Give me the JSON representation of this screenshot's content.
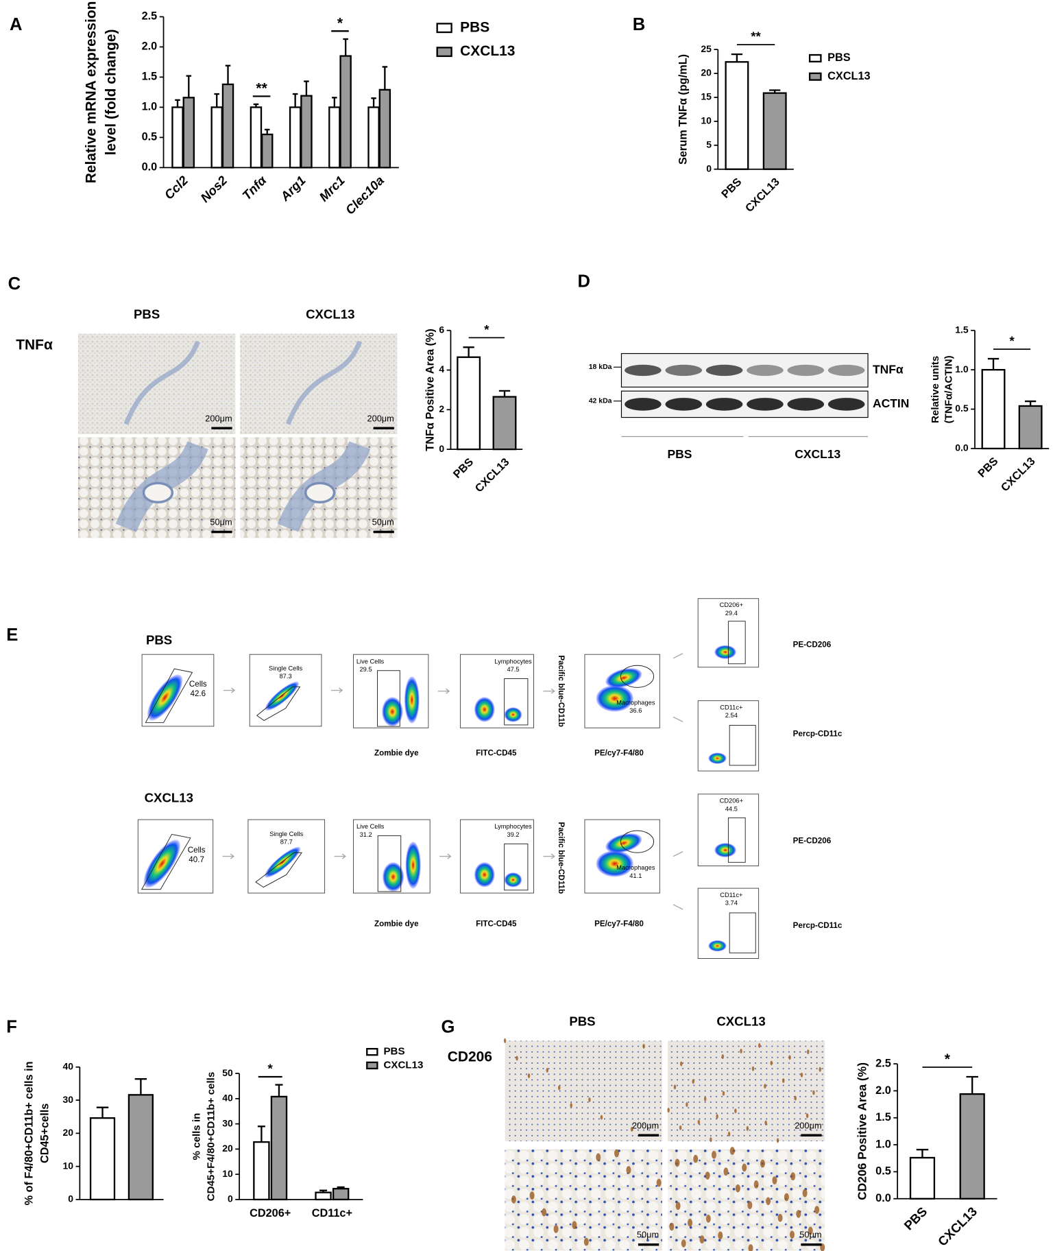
{
  "panels": [
    "A",
    "B",
    "C",
    "D",
    "E",
    "F",
    "G"
  ],
  "chart_data": [
    {
      "type": "bar",
      "categories": [
        "Ccl2",
        "Nos2",
        "Tnfα",
        "Arg1",
        "Mrc1",
        "Clec10a"
      ],
      "series": [
        {
          "name": "PBS",
          "color": "#ffffff",
          "values": [
            1,
            1,
            1,
            1,
            1,
            1
          ],
          "errors": [
            0.12,
            0.22,
            0.05,
            0.22,
            0.16,
            0.15
          ]
        },
        {
          "name": "CXCL13",
          "color": "#9a9a9a",
          "values": [
            1.16,
            1.38,
            0.55,
            1.19,
            1.85,
            1.29
          ],
          "errors": [
            0.36,
            0.31,
            0.08,
            0.24,
            0.28,
            0.38
          ]
        }
      ],
      "ylabel": [
        "Relative mRNA expression",
        "level (fold change)"
      ],
      "ylim": [
        0,
        2.5
      ],
      "yticks": [
        {
          "value": 0,
          "label": "0.0"
        },
        0.5,
        {
          "value": 1,
          "label": "1.0"
        },
        1.5,
        {
          "value": 2,
          "label": "2.0"
        },
        2.5
      ],
      "annotations": [
        {
          "text": "**",
          "category": 2
        },
        {
          "text": "*",
          "category": 4
        }
      ]
    },
    {
      "type": "bar",
      "categories": [
        "PBS",
        "CXCL13"
      ],
      "values": [
        22.4,
        15.9
      ],
      "errors": [
        1.6,
        0.6
      ],
      "colors": [
        "#ffffff",
        "#9a9a9a"
      ],
      "ylabel": [
        "Serum TNFα (pg/mL)"
      ],
      "ylim": [
        0,
        25
      ],
      "yticks": [
        0,
        5,
        10,
        15,
        20,
        25
      ],
      "annotation": "**",
      "legend": true
    },
    {
      "type": "bar",
      "categories": [
        "PBS",
        "CXCL13"
      ],
      "values": [
        4.65,
        2.65
      ],
      "errors": [
        0.5,
        0.3
      ],
      "colors": [
        "#ffffff",
        "#9a9a9a"
      ],
      "ylabel": [
        "TNFα Positive Area (%)"
      ],
      "ylim": [
        0,
        6
      ],
      "yticks": [
        0,
        2,
        4,
        6
      ],
      "annotation": "*"
    },
    {
      "type": "bar",
      "categories": [
        "PBS",
        "CXCL13"
      ],
      "values": [
        1.0,
        0.54
      ],
      "errors": [
        0.14,
        0.06
      ],
      "colors": [
        "#ffffff",
        "#9a9a9a"
      ],
      "ylabel": [
        "Relative units",
        "(TNFα/ACTIN)"
      ],
      "ylim": [
        0,
        1.5
      ],
      "yticks": [
        {
          "value": 0,
          "label": "0.0"
        },
        0.5,
        {
          "value": 1,
          "label": "1.0"
        },
        1.5
      ],
      "annotation": "*"
    },
    {
      "type": "bar",
      "categories": [
        null
      ],
      "series": [
        {
          "color": "#ffffff",
          "values": [
            24.6
          ],
          "errors": [
            3.2
          ]
        },
        {
          "color": "#9a9a9a",
          "values": [
            31.6
          ],
          "errors": [
            4.8
          ]
        }
      ],
      "ylabel": [
        "% of F4/80+CD11b+ cells in",
        "CD45+cells"
      ],
      "ylim": [
        0,
        40
      ],
      "yticks": [
        0,
        10,
        20,
        30,
        40
      ]
    },
    {
      "type": "bar",
      "categories": [
        "CD206+",
        "CD11c+"
      ],
      "series": [
        {
          "name": "PBS",
          "color": "#ffffff",
          "values": [
            22.8,
            2.8
          ],
          "errors": [
            6.2,
            0.8
          ]
        },
        {
          "name": "CXCL13",
          "color": "#9a9a9a",
          "values": [
            40.8,
            4.3
          ],
          "errors": [
            4.7,
            0.6
          ]
        }
      ],
      "ylabel": [
        "% cells in",
        "CD45+F4/80+CD11b+ cells"
      ],
      "ylim": [
        0,
        50
      ],
      "yticks": [
        0,
        10,
        20,
        30,
        40,
        50
      ],
      "annotations": [
        {
          "text": "*",
          "category": 0
        }
      ]
    },
    {
      "type": "bar",
      "categories": [
        "PBS",
        "CXCL13"
      ],
      "values": [
        0.76,
        1.94
      ],
      "errors": [
        0.15,
        0.32
      ],
      "colors": [
        "#ffffff",
        "#9a9a9a"
      ],
      "ylabel": [
        "CD206 Positive Area (%)"
      ],
      "ylim": [
        0,
        2.5
      ],
      "yticks": [
        {
          "value": 0,
          "label": "0.0"
        },
        0.5,
        {
          "value": 1,
          "label": "1.0"
        },
        1.5,
        {
          "value": 2,
          "label": "2.0"
        },
        2.5
      ],
      "annotation": "*"
    }
  ],
  "panel_c": {
    "columns": [
      "PBS",
      "CXCL13"
    ],
    "row": "TNFα",
    "scale_bars": [
      "200μm",
      "200μm",
      "50μm",
      "50μm"
    ]
  },
  "panel_d": {
    "bands": [
      {
        "size": "18 kDa",
        "name": "TNFα"
      },
      {
        "size": "42 kDa",
        "name": "ACTIN"
      }
    ],
    "groups": [
      "PBS",
      "CXCL13"
    ]
  },
  "panel_e": {
    "rows": [
      {
        "group": "PBS",
        "gates": [
          {
            "name": "Cells",
            "value": 42.6
          },
          {
            "name": "Single Cells",
            "value": 87.3
          },
          {
            "name": "Live Cells",
            "value": 29.5
          },
          {
            "name": "Lymphocytes",
            "value": 47.5
          },
          {
            "name": "Macrophages",
            "value": 36.6
          },
          {
            "name": "CD206+",
            "value": 29.4
          },
          {
            "name": "CD11c+",
            "value": 2.54
          }
        ]
      },
      {
        "group": "CXCL13",
        "gates": [
          {
            "name": "Cells",
            "value": 40.7
          },
          {
            "name": "Single Cells",
            "value": 87.7
          },
          {
            "name": "Live Cells",
            "value": 31.2
          },
          {
            "name": "Lymphocytes",
            "value": 39.2
          },
          {
            "name": "Macrophages",
            "value": 41.1
          },
          {
            "name": "CD206+",
            "value": 44.5
          },
          {
            "name": "CD11c+",
            "value": 3.74
          }
        ]
      }
    ],
    "x_labels": [
      "Zombie dye",
      "FITC-CD45",
      "PE/cy7-F4/80"
    ],
    "y_label": "Pacific blue-CD11b",
    "marker_labels": [
      "PE-CD206",
      "Percp-CD11c"
    ]
  },
  "panel_g": {
    "columns": [
      "PBS",
      "CXCL13"
    ],
    "row": "CD206",
    "scale_bars": [
      "200μm",
      "200μm",
      "50μm",
      "50μm"
    ]
  }
}
